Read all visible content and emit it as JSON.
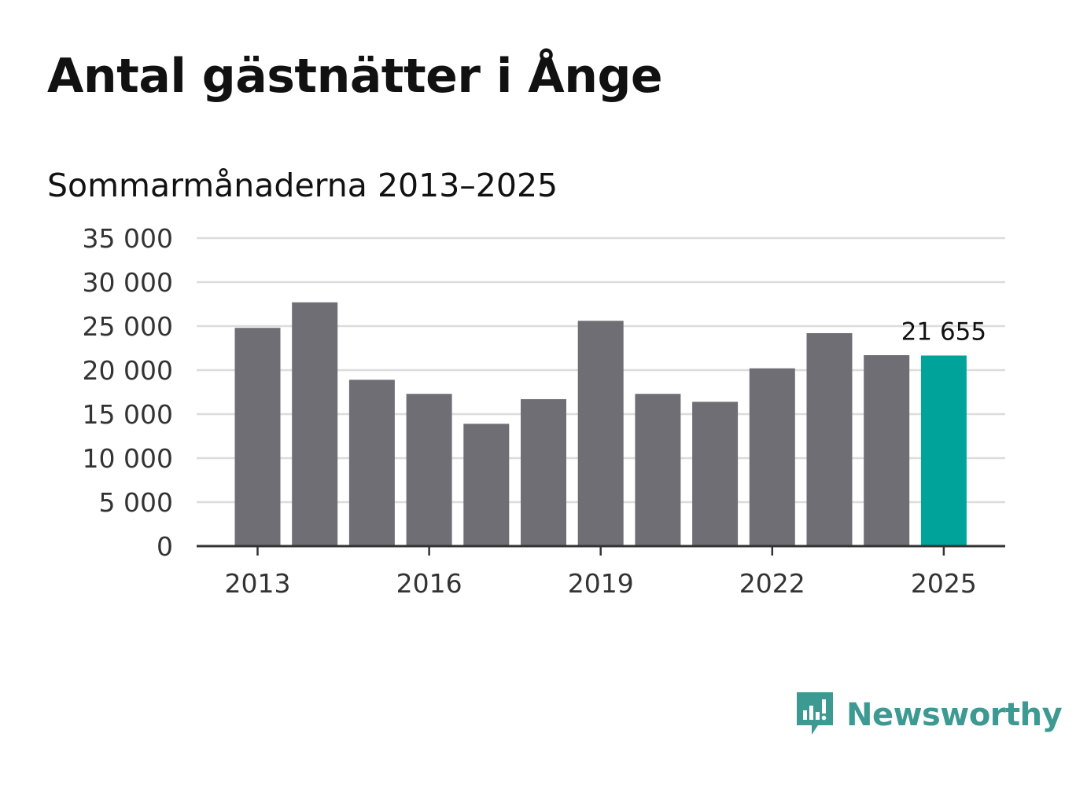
{
  "chart_data": {
    "type": "bar",
    "title": "Antal gästnätter i Ånge",
    "subtitle": "Sommarmånaderna 2013–2025",
    "categories": [
      "2013",
      "2014",
      "2015",
      "2016",
      "2017",
      "2018",
      "2019",
      "2020",
      "2021",
      "2022",
      "2023",
      "2024",
      "2025"
    ],
    "values": [
      24800,
      27700,
      18900,
      17300,
      13900,
      16700,
      25600,
      17300,
      16400,
      20200,
      24200,
      21700,
      21655
    ],
    "ylim": [
      0,
      35000
    ],
    "yticks": [
      0,
      5000,
      10000,
      15000,
      20000,
      25000,
      30000,
      35000
    ],
    "ytick_labels": [
      "0",
      "5 000",
      "10 000",
      "15 000",
      "20 000",
      "25 000",
      "30 000",
      "35 000"
    ],
    "xtick_labels": [
      "2013",
      "2016",
      "2019",
      "2022",
      "2025"
    ],
    "grid": true,
    "bar_color": "#6f6e74",
    "highlight_color": "#00a39a",
    "highlight_index": 12,
    "annotation": {
      "index": 12,
      "label": "21 655"
    }
  },
  "brand": {
    "name": "Newsworthy",
    "color": "#3c9a93",
    "icon": "chart-speech-bubble-icon"
  }
}
